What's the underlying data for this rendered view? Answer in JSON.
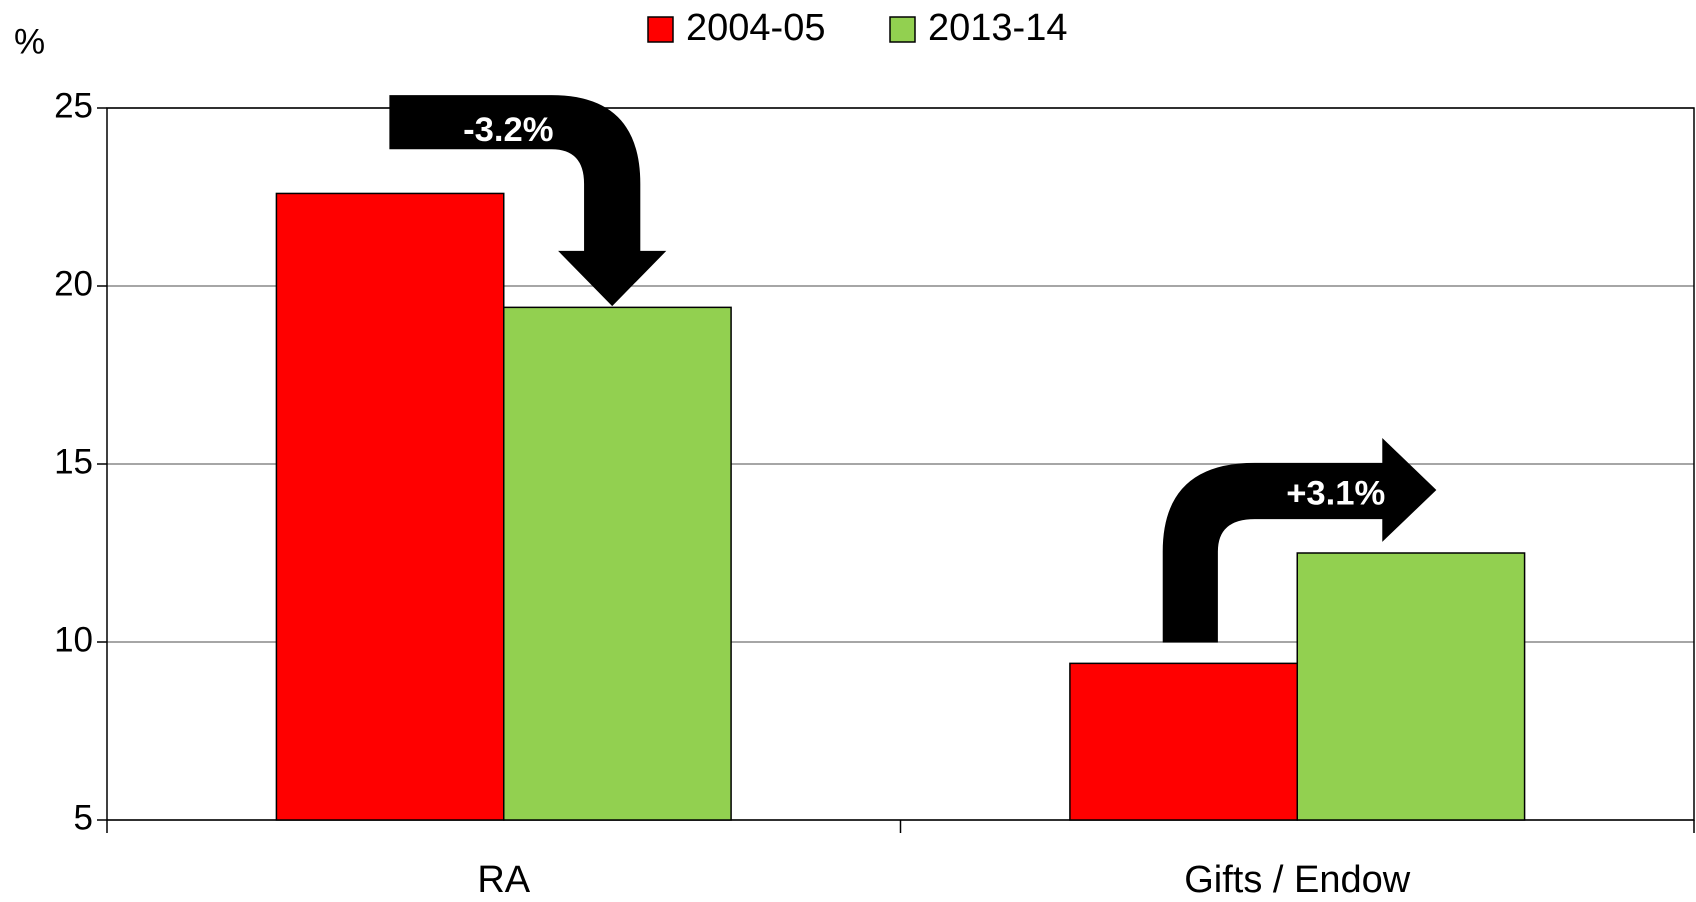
{
  "chart_data": {
    "type": "bar",
    "y_label": "%",
    "categories": [
      "RA",
      "Gifts / Endow"
    ],
    "series": [
      {
        "name": "2004-05",
        "color": "#ff0000",
        "values": [
          22.6,
          9.4
        ]
      },
      {
        "name": "2013-14",
        "color": "#92d050",
        "values": [
          19.4,
          12.5
        ]
      }
    ],
    "ylim": [
      5,
      25
    ],
    "yticks": [
      5,
      10,
      15,
      20,
      25
    ],
    "grid": true,
    "legend": "top",
    "annotations": [
      "-3.2%",
      "+3.1%"
    ]
  }
}
